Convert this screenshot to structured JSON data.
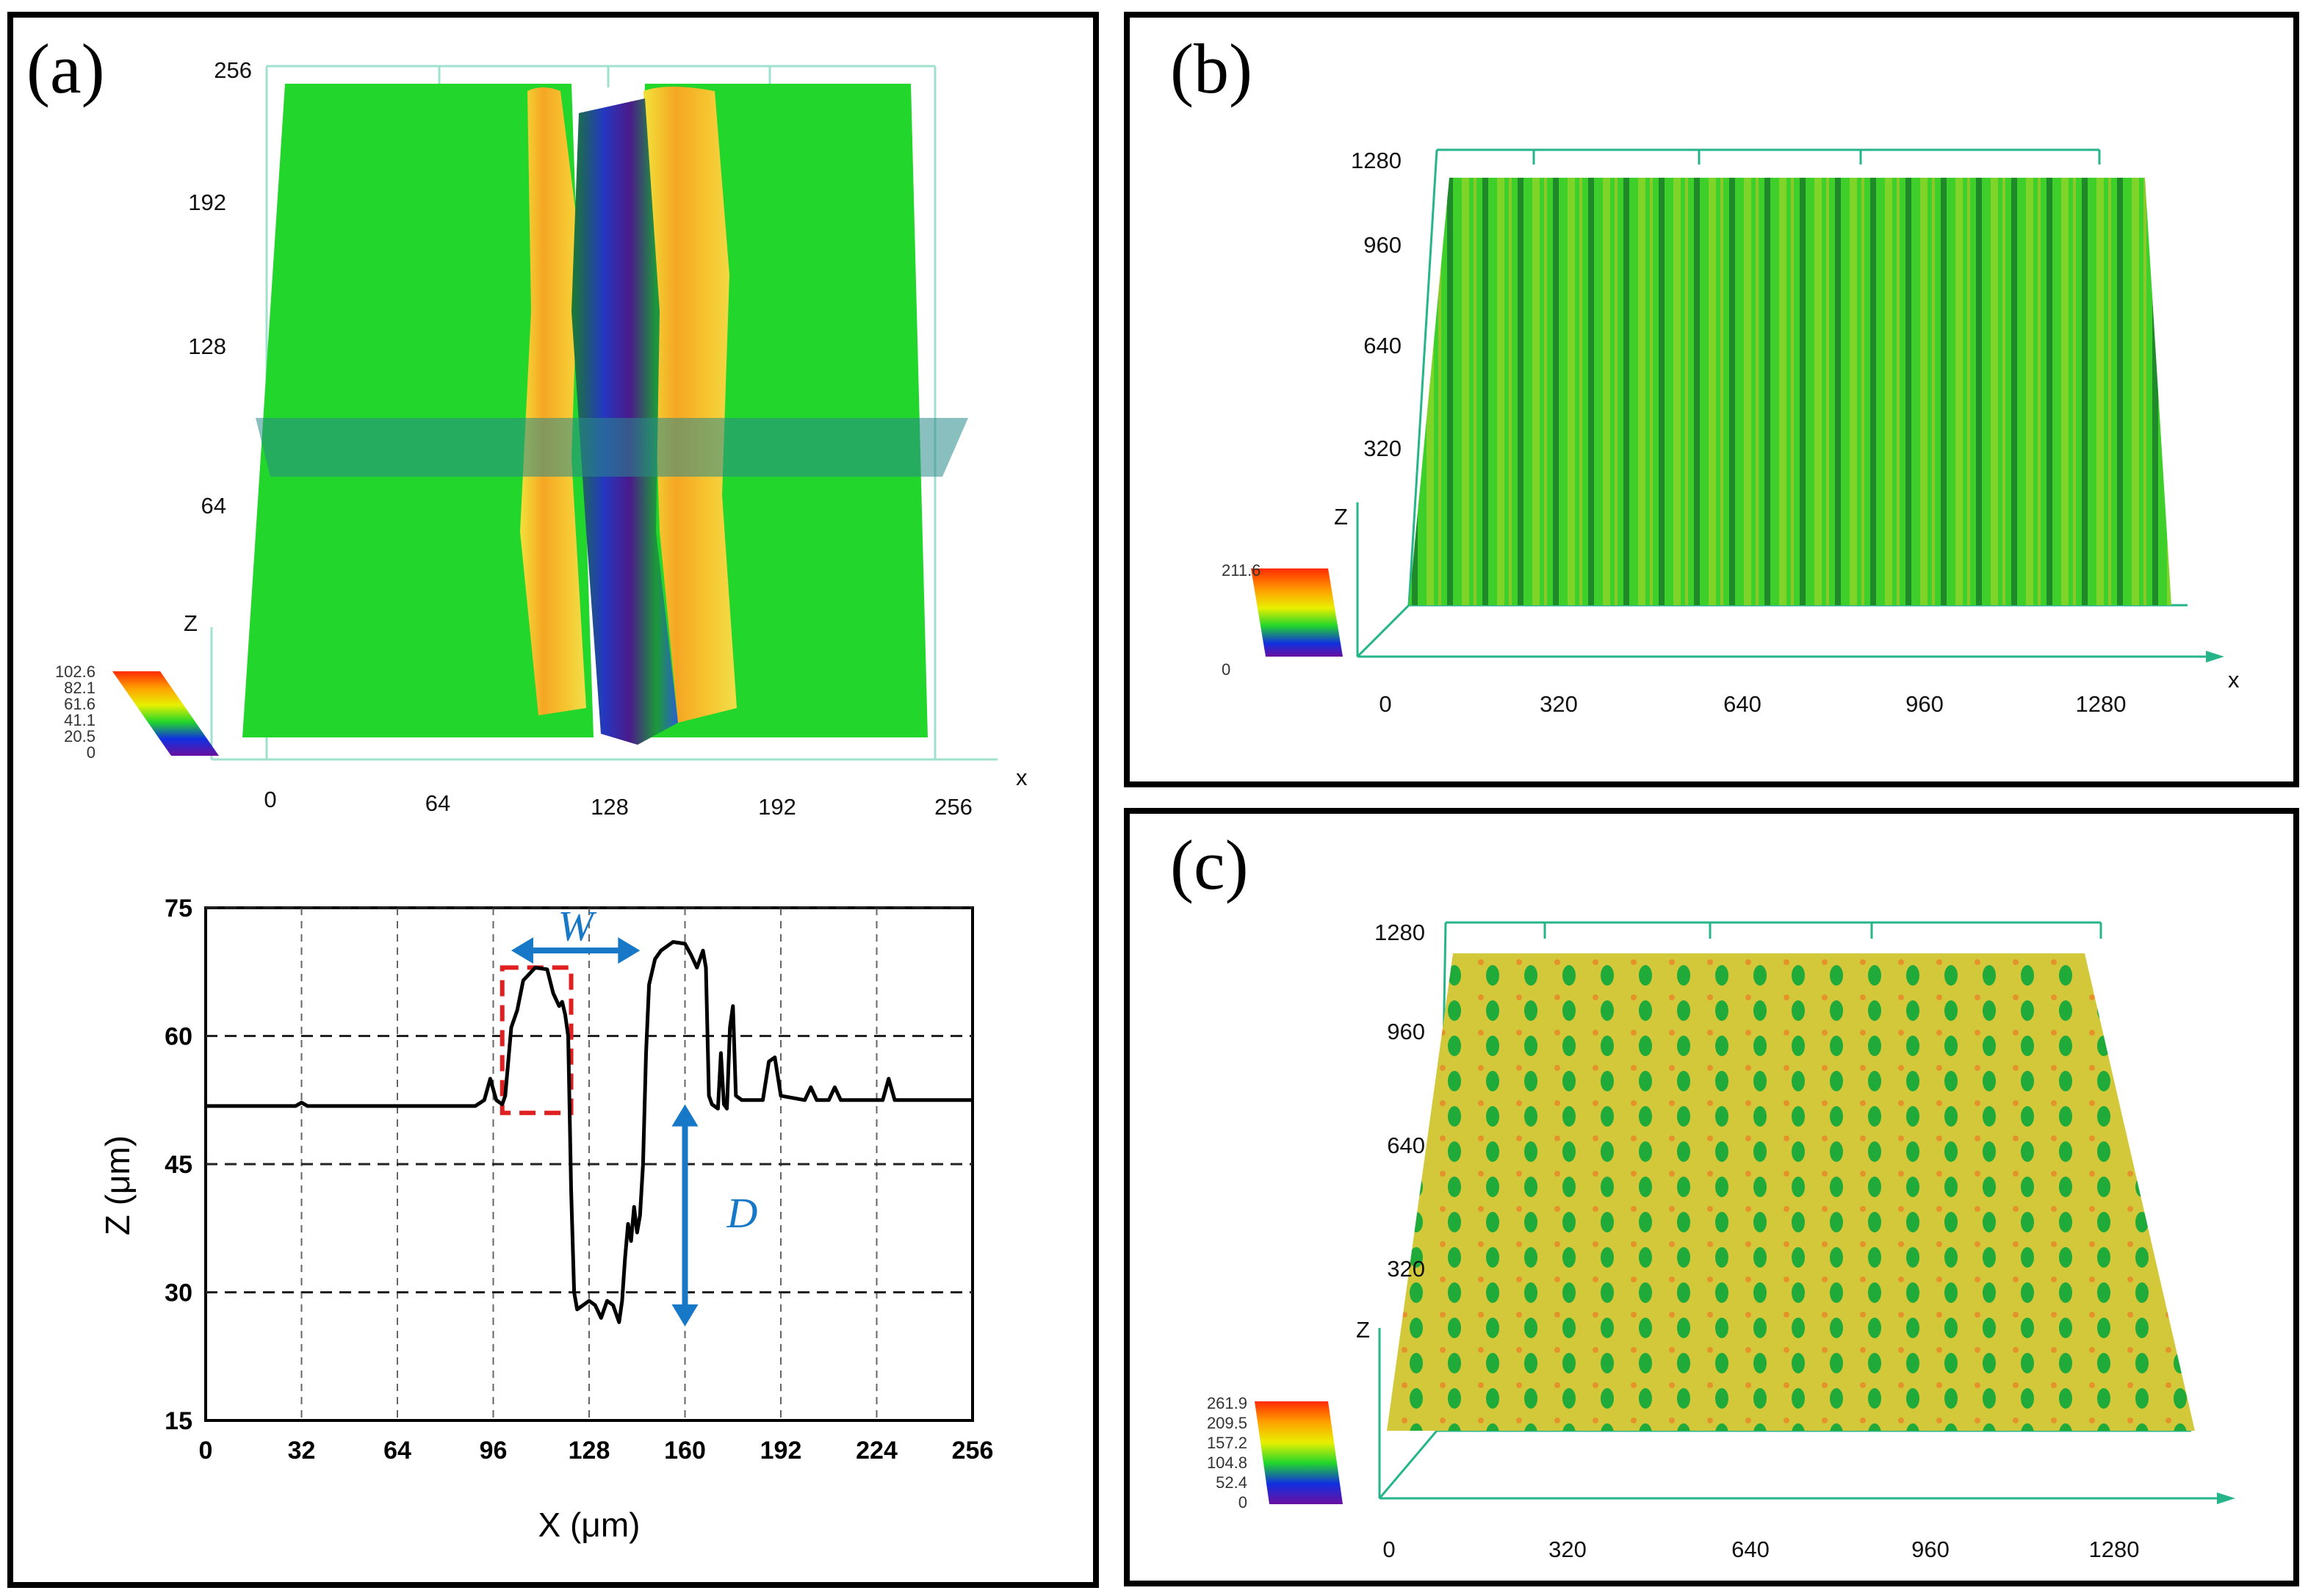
{
  "panels": {
    "a": {
      "label": "(a)",
      "surface": {
        "type": "surface3d",
        "x_ticks": [
          "0",
          "64",
          "128",
          "192",
          "256"
        ],
        "y_ticks": [
          "64",
          "128",
          "192",
          "256"
        ],
        "x_axis": "x",
        "z_axis": "Z",
        "legend_values": [
          "102.6",
          "82.1",
          "61.6",
          "41.1",
          "20.5",
          "0"
        ]
      },
      "profile": {
        "type": "line",
        "xlabel": "X (μm)",
        "ylabel": "Z (μm)",
        "x_ticks": [
          "0",
          "32",
          "64",
          "96",
          "128",
          "160",
          "192",
          "224",
          "256"
        ],
        "y_ticks": [
          "75",
          "60",
          "45",
          "30",
          "15"
        ],
        "xlim": [
          0,
          256
        ],
        "ylim": [
          15,
          75
        ],
        "annotation_w": "W",
        "annotation_d": "D",
        "series": [
          {
            "name": "profile",
            "points": [
              [
                0,
                51.8
              ],
              [
                30,
                51.8
              ],
              [
                32,
                52.2
              ],
              [
                34,
                51.8
              ],
              [
                90,
                51.8
              ],
              [
                93,
                52.5
              ],
              [
                95,
                55
              ],
              [
                97,
                52.5
              ],
              [
                99,
                52
              ],
              [
                100,
                53
              ],
              [
                102,
                61
              ],
              [
                104,
                63
              ],
              [
                106,
                66.5
              ],
              [
                110,
                68
              ],
              [
                114,
                67.8
              ],
              [
                116,
                65
              ],
              [
                118,
                63.5
              ],
              [
                119,
                64
              ],
              [
                120,
                62.5
              ],
              [
                121,
                60
              ],
              [
                122,
                42
              ],
              [
                123,
                30
              ],
              [
                124,
                28
              ],
              [
                128,
                29
              ],
              [
                130,
                28.5
              ],
              [
                132,
                27
              ],
              [
                134,
                29
              ],
              [
                136,
                28.5
              ],
              [
                138,
                26.5
              ],
              [
                139,
                29
              ],
              [
                140,
                34
              ],
              [
                141,
                38
              ],
              [
                142,
                36
              ],
              [
                143,
                40
              ],
              [
                144,
                37
              ],
              [
                145,
                39
              ],
              [
                146,
                45
              ],
              [
                147,
                58
              ],
              [
                148,
                66
              ],
              [
                150,
                69
              ],
              [
                152,
                70
              ],
              [
                156,
                71
              ],
              [
                160,
                70.8
              ],
              [
                162,
                69.5
              ],
              [
                164,
                68
              ],
              [
                166,
                70
              ],
              [
                167,
                68
              ],
              [
                168,
                53
              ],
              [
                169,
                52
              ],
              [
                171,
                51.5
              ],
              [
                172,
                58
              ],
              [
                173,
                52
              ],
              [
                174,
                51.5
              ],
              [
                175,
                61
              ],
              [
                176,
                63.5
              ],
              [
                177,
                53
              ],
              [
                179,
                52.5
              ],
              [
                186,
                52.5
              ],
              [
                188,
                57
              ],
              [
                190,
                57.5
              ],
              [
                192,
                53
              ],
              [
                200,
                52.5
              ],
              [
                202,
                54
              ],
              [
                204,
                52.5
              ],
              [
                208,
                52.5
              ],
              [
                210,
                54
              ],
              [
                212,
                52.5
              ],
              [
                226,
                52.5
              ],
              [
                228,
                55
              ],
              [
                230,
                52.5
              ],
              [
                256,
                52.5
              ]
            ]
          }
        ],
        "w_arrow": {
          "x1": 102,
          "x2": 145,
          "y": 70
        },
        "d_arrow": {
          "x": 160,
          "y1": 52,
          "y2": 26
        },
        "red_box": {
          "x1": 99,
          "x2": 122,
          "y1": 51,
          "y2": 68
        }
      }
    },
    "b": {
      "label": "(b)",
      "type": "surface3d",
      "x_ticks": [
        "0",
        "320",
        "640",
        "960",
        "1280"
      ],
      "y_ticks": [
        "320",
        "640",
        "960",
        "1280"
      ],
      "x_axis": "x",
      "z_axis": "Z",
      "legend_values": [
        "211.6",
        "0"
      ]
    },
    "c": {
      "label": "(c)",
      "type": "surface3d",
      "x_ticks": [
        "0",
        "320",
        "640",
        "960",
        "1280"
      ],
      "y_ticks": [
        "320",
        "640",
        "960",
        "1280"
      ],
      "z_axis": "Z",
      "legend_values": [
        "261.9",
        "209.5",
        "157.2",
        "104.8",
        "52.4",
        "0"
      ]
    }
  },
  "colors": {
    "surface_green": "#22d62b",
    "axis_teal": "#26b58a",
    "annot_blue": "#1878c8",
    "box_red": "#e02020"
  }
}
